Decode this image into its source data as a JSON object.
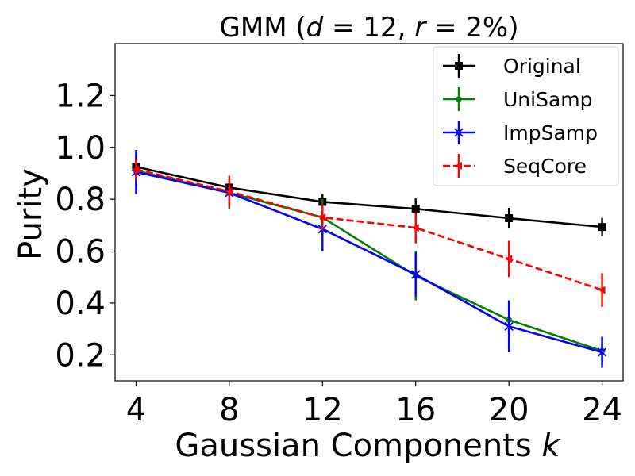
{
  "chart_data": {
    "type": "line",
    "title_parts": {
      "prefix": "GMM (",
      "d_var": "d",
      "d_eq": " = 12, ",
      "r_var": "r",
      "r_eq": " = 2%)"
    },
    "xlabel_parts": {
      "text": "Gaussian Components ",
      "var": "k"
    },
    "ylabel": "Purity",
    "x": [
      4,
      8,
      12,
      16,
      20,
      24
    ],
    "xticks": [
      "4",
      "8",
      "12",
      "16",
      "20",
      "24"
    ],
    "yticks": [
      "0.2",
      "0.4",
      "0.6",
      "0.8",
      "1.0",
      "1.2"
    ],
    "ytick_values": [
      0.2,
      0.4,
      0.6,
      0.8,
      1.0,
      1.2
    ],
    "xlim": [
      3.1,
      24.9
    ],
    "ylim": [
      0.1,
      1.4
    ],
    "grid": false,
    "legend_position": "top-right",
    "series": [
      {
        "name": "Original",
        "color": "#000000",
        "marker": "square",
        "dash": "solid",
        "values": [
          0.925,
          0.845,
          0.79,
          0.763,
          0.727,
          0.693
        ],
        "errors": [
          0.03,
          0.03,
          0.03,
          0.04,
          0.04,
          0.035
        ]
      },
      {
        "name": "UniSamp",
        "color": "#008000",
        "marker": "circle",
        "dash": "solid",
        "values": [
          0.91,
          0.825,
          0.73,
          0.505,
          0.335,
          0.215
        ],
        "errors": [
          0.06,
          0.065,
          0.07,
          0.095,
          0.07,
          0.05
        ]
      },
      {
        "name": "ImpSamp",
        "color": "#0000ff",
        "marker": "x",
        "dash": "solid",
        "values": [
          0.905,
          0.825,
          0.685,
          0.51,
          0.31,
          0.21
        ],
        "errors": [
          0.085,
          0.05,
          0.085,
          0.085,
          0.1,
          0.06
        ]
      },
      {
        "name": "SeqCore",
        "color": "#ff0000",
        "marker": "triangle-left",
        "dash": "dashed",
        "values": [
          0.915,
          0.83,
          0.73,
          0.69,
          0.57,
          0.45
        ],
        "errors": [
          0.04,
          0.06,
          0.05,
          0.06,
          0.07,
          0.065
        ]
      }
    ]
  }
}
